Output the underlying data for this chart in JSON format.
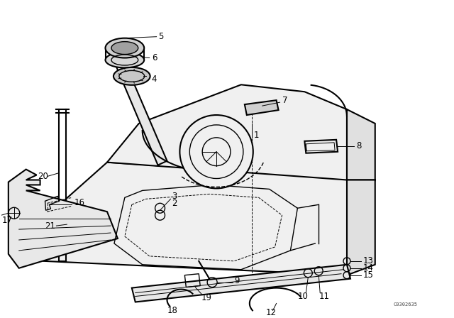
{
  "bg_color": "#ffffff",
  "line_color": "#000000",
  "figure_width": 6.4,
  "figure_height": 4.48,
  "dpi": 100,
  "watermark": "C0302635"
}
